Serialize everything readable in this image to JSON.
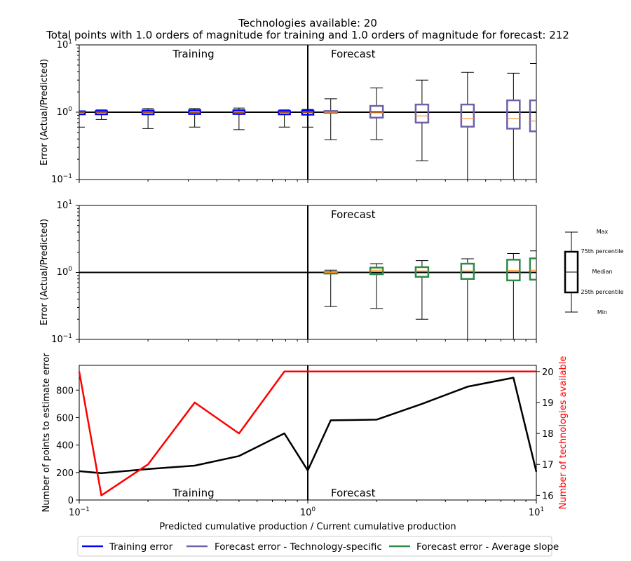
{
  "title_line1": "Technologies available: 20",
  "title_line2": "Total points with 1.0 orders of magnitude for training  and 1.0 orders of magnitude for forecast: 212",
  "colors": {
    "training": "#0000ff",
    "forecast_specific": "#7060a8",
    "forecast_average": "#2e8b46",
    "median": "#ff8c1a",
    "points_line": "#000000",
    "techs_line": "#ff0000"
  },
  "legend": {
    "placement": "bottom-center",
    "items": [
      {
        "label": "Training error",
        "color": "#0000ff"
      },
      {
        "label": "Forecast error - Technology-specific",
        "color": "#7060a8"
      },
      {
        "label": "Forecast error - Average slope",
        "color": "#2e8b46"
      }
    ]
  },
  "boxplot_key": {
    "labels": [
      "Max",
      "75th percentile",
      "Median",
      "25th percentile",
      "Min"
    ]
  },
  "chart_data": [
    {
      "id": "panel1",
      "type": "boxplot",
      "ylabel": "Error (Actual/Predicted)",
      "xscale": "log",
      "yscale": "log",
      "xlim": [
        0.1,
        10
      ],
      "ylim": [
        0.1,
        10
      ],
      "y_ticks": [
        {
          "base": "10",
          "exp": "−1"
        },
        {
          "base": "10",
          "exp": "0"
        },
        {
          "base": "10",
          "exp": "1"
        }
      ],
      "annotations": [
        "Training",
        "Forecast"
      ],
      "series": [
        {
          "name": "Training error",
          "kind": "training",
          "boxes": [
            {
              "x": 0.1,
              "min": 0.6,
              "q1": 0.93,
              "median": 1.0,
              "q3": 1.03,
              "max": 1.03
            },
            {
              "x": 0.125,
              "min": 0.78,
              "q1": 0.93,
              "median": 1.0,
              "q3": 1.04,
              "max": 1.08
            },
            {
              "x": 0.2,
              "min": 0.57,
              "q1": 0.93,
              "median": 1.0,
              "q3": 1.06,
              "max": 1.13
            },
            {
              "x": 0.32,
              "min": 0.6,
              "q1": 0.94,
              "median": 1.0,
              "q3": 1.07,
              "max": 1.13
            },
            {
              "x": 0.5,
              "min": 0.55,
              "q1": 0.94,
              "median": 1.0,
              "q3": 1.07,
              "max": 1.15
            },
            {
              "x": 0.79,
              "min": 0.6,
              "q1": 0.93,
              "median": 1.0,
              "q3": 1.04,
              "max": 1.08
            },
            {
              "x": 1.0,
              "min": 0.6,
              "q1": 0.92,
              "median": 1.0,
              "q3": 1.06,
              "max": 1.1
            }
          ]
        },
        {
          "name": "Forecast error - Technology-specific",
          "kind": "forecast_specific",
          "boxes": [
            {
              "x": 1.26,
              "min": 0.39,
              "q1": 0.98,
              "median": 1.0,
              "q3": 1.04,
              "max": 1.58
            },
            {
              "x": 2.0,
              "min": 0.39,
              "q1": 0.83,
              "median": 0.98,
              "q3": 1.24,
              "max": 2.3
            },
            {
              "x": 3.16,
              "min": 0.19,
              "q1": 0.7,
              "median": 0.88,
              "q3": 1.3,
              "max": 3.0
            },
            {
              "x": 5.0,
              "min": 0.1,
              "q1": 0.61,
              "median": 0.8,
              "q3": 1.3,
              "max": 3.9
            },
            {
              "x": 7.94,
              "min": 0.1,
              "q1": 0.57,
              "median": 0.8,
              "q3": 1.5,
              "max": 3.8
            },
            {
              "x": 10.0,
              "min": 0.1,
              "q1": 0.52,
              "median": 0.74,
              "q3": 1.5,
              "max": 5.3
            }
          ]
        }
      ]
    },
    {
      "id": "panel2",
      "type": "boxplot",
      "ylabel": "Error (Actual/Predicted)",
      "xscale": "log",
      "yscale": "log",
      "xlim": [
        0.1,
        10
      ],
      "ylim": [
        0.1,
        10
      ],
      "y_ticks": [
        {
          "base": "10",
          "exp": "−1"
        },
        {
          "base": "10",
          "exp": "0"
        },
        {
          "base": "10",
          "exp": "1"
        }
      ],
      "annotations": [
        "Forecast"
      ],
      "series": [
        {
          "name": "Forecast error - Average slope",
          "kind": "forecast_average",
          "boxes": [
            {
              "x": 1.26,
              "min": 0.31,
              "q1": 0.99,
              "median": 1.0,
              "q3": 1.01,
              "max": 1.08
            },
            {
              "x": 2.0,
              "min": 0.29,
              "q1": 0.94,
              "median": 1.08,
              "q3": 1.18,
              "max": 1.35
            },
            {
              "x": 3.16,
              "min": 0.2,
              "q1": 0.86,
              "median": 1.05,
              "q3": 1.2,
              "max": 1.5
            },
            {
              "x": 5.0,
              "min": 0.1,
              "q1": 0.8,
              "median": 1.05,
              "q3": 1.35,
              "max": 1.6
            },
            {
              "x": 7.94,
              "min": 0.1,
              "q1": 0.76,
              "median": 1.07,
              "q3": 1.55,
              "max": 1.92
            },
            {
              "x": 10.0,
              "min": 0.1,
              "q1": 0.78,
              "median": 1.08,
              "q3": 1.62,
              "max": 2.1
            }
          ]
        }
      ]
    },
    {
      "id": "panel3",
      "type": "line",
      "xscale": "log",
      "xlim": [
        0.1,
        10
      ],
      "xlabel": "Predicted cumulative production / Current cumulative production",
      "x_ticks": [
        {
          "base": "10",
          "exp": "−1"
        },
        {
          "base": "10",
          "exp": "0"
        },
        {
          "base": "10",
          "exp": "1"
        }
      ],
      "annotations": [
        "Training",
        "Forecast"
      ],
      "ylabel_left": "Number of points to estimate error",
      "ylabel_right": "Number of technologies available",
      "ylim_left": [
        0,
        980
      ],
      "ylim_right": [
        15.85,
        20.2
      ],
      "y_ticks_left": [
        "0",
        "200",
        "400",
        "600",
        "800"
      ],
      "y_ticks_right": [
        "16",
        "17",
        "18",
        "19",
        "20"
      ],
      "series": [
        {
          "axis": "left",
          "color": "#000000",
          "x": [
            0.1,
            0.125,
            0.2,
            0.32,
            0.5,
            0.79,
            1.0,
            1.26,
            2.0,
            3.16,
            5.0,
            7.94,
            10.0
          ],
          "y": [
            210,
            195,
            225,
            250,
            320,
            485,
            215,
            580,
            585,
            700,
            825,
            890,
            205
          ]
        },
        {
          "axis": "right",
          "color": "#ff0000",
          "x": [
            0.1,
            0.125,
            0.2,
            0.32,
            0.5,
            0.79,
            1.0,
            1.26,
            2.0,
            3.16,
            5.0,
            7.94,
            10.0
          ],
          "y": [
            20,
            16,
            17,
            19,
            18,
            20,
            20,
            20,
            20,
            20,
            20,
            20,
            20
          ]
        }
      ]
    }
  ]
}
